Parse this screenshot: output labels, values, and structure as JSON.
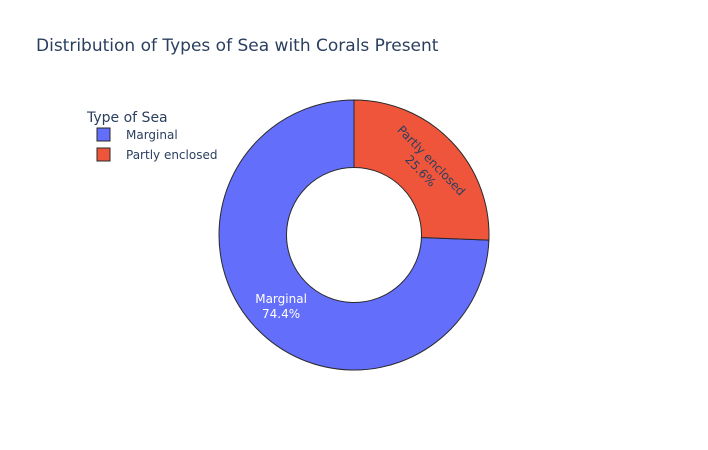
{
  "chart_data": {
    "type": "pie",
    "title": "Distribution of Types of Sea with Corals Present",
    "hole": 0.5,
    "legend": {
      "title": "Type of Sea",
      "position": "top-left"
    },
    "slices": [
      {
        "label": "Marginal",
        "percent": 74.4,
        "percent_text": "74.4%",
        "color": "#636efa",
        "text_color": "#ffffff"
      },
      {
        "label": "Partly enclosed",
        "percent": 25.6,
        "percent_text": "25.6%",
        "color": "#ef553b",
        "text_color": "#2a3f5f"
      }
    ]
  }
}
